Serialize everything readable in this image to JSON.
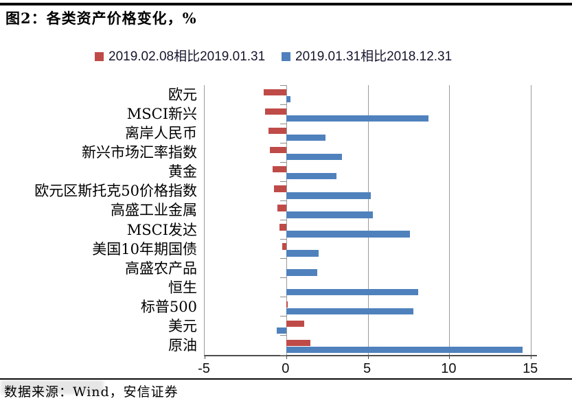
{
  "header": {
    "figure_title": "图2：各类资产价格变化，%"
  },
  "legend": {
    "items": [
      {
        "label": "2019.02.08相比2019.01.31",
        "color": "#BE4B48"
      },
      {
        "label": "2019.01.31相比2018.12.31",
        "color": "#4F81BD"
      }
    ]
  },
  "footer": {
    "source": "数据来源：Wind，安信证券"
  },
  "chart_data": {
    "type": "bar",
    "orientation": "horizontal",
    "title": "图2：各类资产价格变化，%",
    "unit": "%",
    "categories": [
      "欧元",
      "MSCI新兴",
      "离岸人民币",
      "新兴市场汇率指数",
      "黄金",
      "欧元区斯托克50价格指数",
      "高盛工业金属",
      "MSCI发达",
      "美国10年期国债",
      "高盛农产品",
      "恒生",
      "标普500",
      "美元",
      "原油"
    ],
    "series": [
      {
        "name": "2019.02.08相比2019.01.31",
        "color": "#BE4B48",
        "values": [
          -1.4,
          -1.3,
          -1.1,
          -1.0,
          -0.85,
          -0.75,
          -0.55,
          -0.4,
          -0.25,
          0.0,
          0.0,
          0.1,
          1.1,
          1.5
        ]
      },
      {
        "name": "2019.01.31相比2018.12.31",
        "color": "#4F81BD",
        "values": [
          0.25,
          8.7,
          2.4,
          3.4,
          3.1,
          5.2,
          5.3,
          7.6,
          2.0,
          1.9,
          8.1,
          7.8,
          -0.6,
          14.5
        ]
      }
    ],
    "x_ticks": [
      -5,
      0,
      5,
      10,
      15
    ],
    "xlim": [
      -5,
      15.4
    ],
    "grid": true,
    "legend_position": "top"
  }
}
